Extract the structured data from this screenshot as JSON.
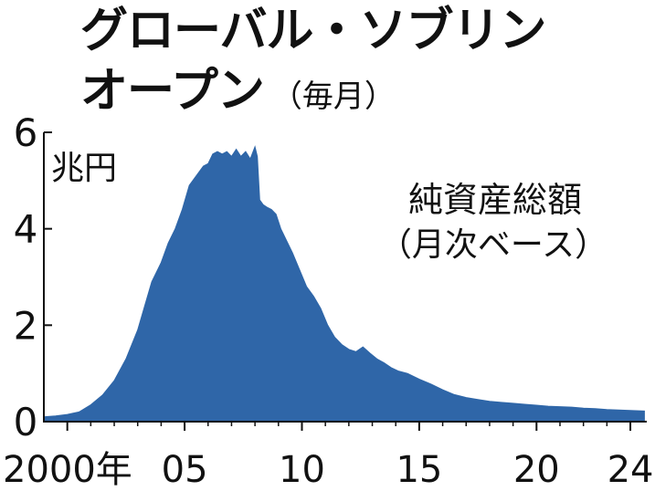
{
  "title_line1": "グローバル・ソブリン",
  "title_line2": "オープン",
  "title_sub": "（毎月）",
  "chart_data": {
    "type": "area",
    "unit_label": "兆円",
    "series_label_line1": "純資産総額",
    "series_label_line2": "（月次ベース）",
    "color": "#2f66a8",
    "ylim": [
      0,
      6
    ],
    "y_ticks": [
      0,
      2,
      4,
      6
    ],
    "xlim": [
      1999,
      2024.7
    ],
    "x_ticks": [
      {
        "value": 2000,
        "label": "2000年"
      },
      {
        "value": 2005,
        "label": "05"
      },
      {
        "value": 2010,
        "label": "10"
      },
      {
        "value": 2015,
        "label": "15"
      },
      {
        "value": 2020,
        "label": "20"
      },
      {
        "value": 2024,
        "label": "24"
      }
    ],
    "minor_x_ticks": [
      2001,
      2002,
      2003,
      2004,
      2006,
      2007,
      2008,
      2009,
      2011,
      2012,
      2013,
      2014,
      2016,
      2017,
      2018,
      2019,
      2021,
      2022,
      2023
    ],
    "x": [
      1999.0,
      1999.5,
      2000.0,
      2000.5,
      2001.0,
      2001.5,
      2002.0,
      2002.5,
      2003.0,
      2003.3,
      2003.6,
      2004.0,
      2004.3,
      2004.6,
      2004.9,
      2005.2,
      2005.5,
      2005.8,
      2006.0,
      2006.2,
      2006.4,
      2006.6,
      2006.8,
      2007.0,
      2007.2,
      2007.4,
      2007.6,
      2007.8,
      2008.0,
      2008.1,
      2008.2,
      2008.35,
      2008.5,
      2008.7,
      2008.9,
      2009.1,
      2009.3,
      2009.6,
      2009.9,
      2010.2,
      2010.5,
      2010.8,
      2011.1,
      2011.4,
      2011.7,
      2012.0,
      2012.3,
      2012.6,
      2012.9,
      2013.2,
      2013.5,
      2013.8,
      2014.1,
      2014.5,
      2015.0,
      2015.5,
      2016.0,
      2016.5,
      2017.0,
      2017.5,
      2018.0,
      2018.5,
      2019.0,
      2019.5,
      2020.0,
      2020.5,
      2021.0,
      2021.5,
      2022.0,
      2022.5,
      2023.0,
      2023.5,
      2024.0,
      2024.6
    ],
    "values": [
      0.1,
      0.12,
      0.15,
      0.2,
      0.35,
      0.55,
      0.85,
      1.3,
      1.9,
      2.4,
      2.9,
      3.3,
      3.7,
      4.0,
      4.4,
      4.9,
      5.1,
      5.3,
      5.35,
      5.55,
      5.6,
      5.55,
      5.6,
      5.5,
      5.65,
      5.5,
      5.6,
      5.45,
      5.7,
      5.5,
      4.6,
      4.5,
      4.45,
      4.4,
      4.3,
      4.0,
      3.8,
      3.5,
      3.15,
      2.8,
      2.6,
      2.35,
      2.0,
      1.75,
      1.6,
      1.5,
      1.45,
      1.55,
      1.42,
      1.3,
      1.22,
      1.12,
      1.05,
      1.0,
      0.88,
      0.78,
      0.66,
      0.56,
      0.5,
      0.46,
      0.42,
      0.4,
      0.38,
      0.36,
      0.34,
      0.32,
      0.31,
      0.3,
      0.28,
      0.27,
      0.25,
      0.24,
      0.23,
      0.22
    ]
  }
}
